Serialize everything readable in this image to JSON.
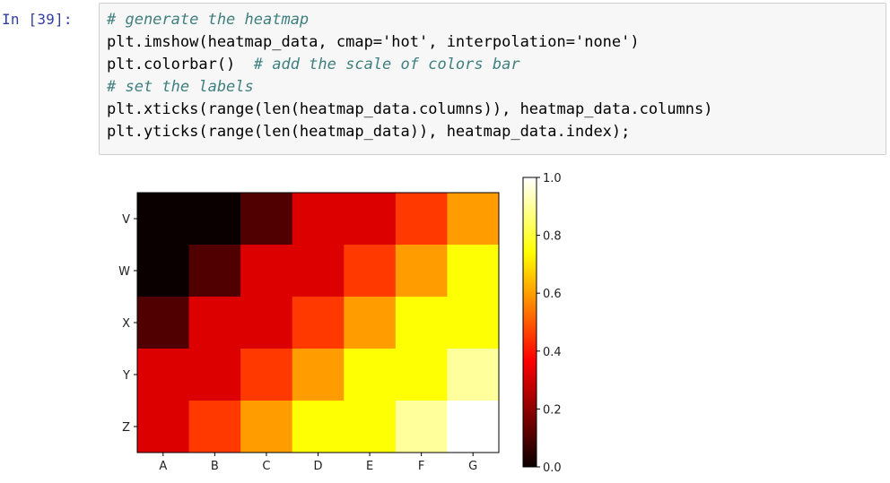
{
  "prompt_label": "In [39]:",
  "code": {
    "line1_comment": "# generate the heatmap",
    "line2_code": "plt.imshow(heatmap_data, cmap='hot', interpolation='none')",
    "line3_code": "plt.colorbar()  ",
    "line3_comment": "# add the scale of colors bar",
    "line4_comment": "# set the labels",
    "line5_code": "plt.xticks(range(len(heatmap_data.columns)), heatmap_data.columns)",
    "line6_code": "plt.yticks(range(len(heatmap_data)), heatmap_data.index);"
  },
  "chart_data": {
    "type": "heatmap",
    "colormap": "hot",
    "x_categories": [
      "A",
      "B",
      "C",
      "D",
      "E",
      "F",
      "G"
    ],
    "y_categories": [
      "V",
      "W",
      "X",
      "Y",
      "Z"
    ],
    "values": [
      [
        0.0,
        0.0,
        0.1,
        0.3,
        0.3,
        0.45,
        0.6
      ],
      [
        0.0,
        0.1,
        0.3,
        0.3,
        0.45,
        0.6,
        0.75
      ],
      [
        0.1,
        0.3,
        0.3,
        0.45,
        0.6,
        0.75,
        0.75
      ],
      [
        0.3,
        0.3,
        0.45,
        0.6,
        0.75,
        0.75,
        0.9
      ],
      [
        0.3,
        0.45,
        0.6,
        0.75,
        0.75,
        0.9,
        1.0
      ]
    ],
    "colorbar": {
      "min": 0.0,
      "max": 1.0,
      "tick_values": [
        0.0,
        0.2,
        0.4,
        0.6,
        0.8,
        1.0
      ],
      "tick_labels": [
        "0.0",
        "0.2",
        "0.4",
        "0.6",
        "0.8",
        "1.0"
      ]
    },
    "title": "",
    "xlabel": "",
    "ylabel": ""
  }
}
